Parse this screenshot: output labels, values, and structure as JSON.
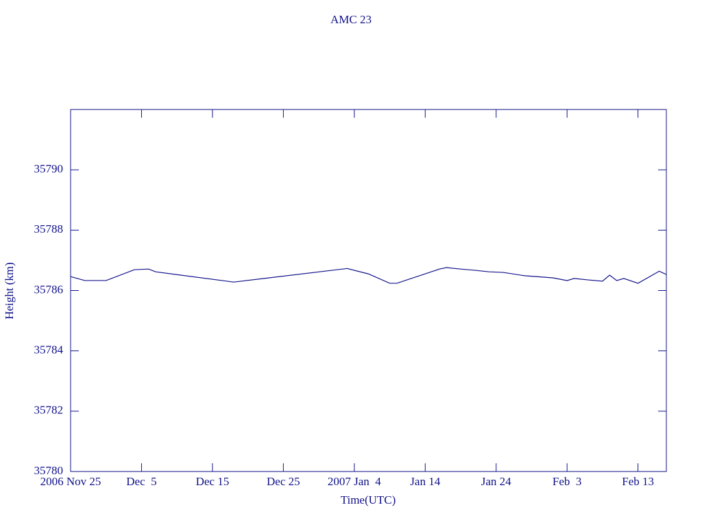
{
  "chart_data": {
    "type": "line",
    "title": "AMC 23",
    "xlabel": "Time(UTC)",
    "ylabel": "Height (km)",
    "color": "#10108a",
    "xlim": [
      "2006-11-25",
      "2007-02-17"
    ],
    "xticks": [
      {
        "value": "2006-11-25",
        "label": "2006 Nov 25"
      },
      {
        "value": "2006-12-05",
        "label": "Dec  5"
      },
      {
        "value": "2006-12-15",
        "label": "Dec 15"
      },
      {
        "value": "2006-12-25",
        "label": "Dec 25"
      },
      {
        "value": "2007-01-04",
        "label": "2007 Jan  4"
      },
      {
        "value": "2007-01-14",
        "label": "Jan 14"
      },
      {
        "value": "2007-01-24",
        "label": "Jan 24"
      },
      {
        "value": "2007-02-03",
        "label": "Feb  3"
      },
      {
        "value": "2007-02-13",
        "label": "Feb 13"
      }
    ],
    "ylim": [
      35780,
      35792
    ],
    "yticks": [
      35780,
      35782,
      35784,
      35786,
      35788,
      35790
    ],
    "x": [
      "2006-11-25",
      "2006-11-27",
      "2006-11-30",
      "2006-12-04",
      "2006-12-06",
      "2006-12-07",
      "2006-12-18",
      "2007-01-03",
      "2007-01-06",
      "2007-01-09",
      "2007-01-10",
      "2007-01-16",
      "2007-01-17",
      "2007-01-19",
      "2007-01-21",
      "2007-01-23",
      "2007-01-25",
      "2007-01-28",
      "2007-02-01",
      "2007-02-03",
      "2007-02-04",
      "2007-02-06",
      "2007-02-08",
      "2007-02-09",
      "2007-02-10",
      "2007-02-11",
      "2007-02-13",
      "2007-02-16",
      "2007-02-17"
    ],
    "values": [
      35786.46,
      35786.33,
      35786.33,
      35786.69,
      35786.71,
      35786.62,
      35786.28,
      35786.73,
      35786.55,
      35786.24,
      35786.24,
      35786.71,
      35786.76,
      35786.71,
      35786.67,
      35786.62,
      35786.6,
      35786.49,
      35786.42,
      35786.33,
      35786.4,
      35786.35,
      35786.31,
      35786.51,
      35786.33,
      35786.4,
      35786.24,
      35786.64,
      35786.53
    ]
  }
}
